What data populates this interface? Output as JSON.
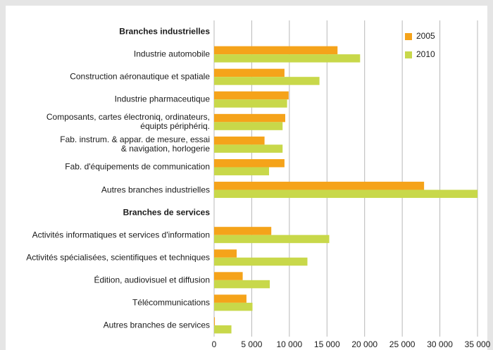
{
  "chart_data": {
    "type": "bar",
    "orientation": "horizontal",
    "categories": [
      "Branches industrielles",
      "Industrie automobile",
      "Construction aéronautique et spatiale",
      "Industrie pharmaceutique",
      "Composants, cartes électroniq, ordinateurs,\néquipts périphériq.",
      "Fab. instrum. & appar. de mesure, essai\n& navigation, horlogerie",
      "Fab. d'équipements de communication",
      "Autres branches industrielles",
      "Branches de services",
      "Activités informatiques et services d'information",
      "Activités spécialisées, scientifiques et techniques",
      "Édition, audiovisuel et diffusion",
      "Télécommunications",
      "Autres branches de services"
    ],
    "series": [
      {
        "name": "2005",
        "color": "#f5a31a",
        "values": [
          null,
          16400,
          9350,
          9900,
          9450,
          6700,
          9350,
          27900,
          null,
          7600,
          3000,
          3800,
          4300,
          100
        ]
      },
      {
        "name": "2010",
        "color": "#c8d84a",
        "values": [
          null,
          19400,
          14000,
          9700,
          9100,
          9100,
          7300,
          35000,
          null,
          15300,
          12400,
          7400,
          5100,
          2300
        ]
      }
    ],
    "xlim": [
      0,
      35000
    ],
    "xticks": [
      0,
      {
        "value": 5000,
        "label": "5 000"
      },
      {
        "value": 10000,
        "label": "10 000"
      },
      {
        "value": 15000,
        "label": "15 000"
      },
      {
        "value": 20000,
        "label": "20 000"
      },
      {
        "value": 25000,
        "label": "25 000"
      },
      {
        "value": 30000,
        "label": "30 000"
      },
      {
        "value": 35000,
        "label": "35 000"
      }
    ],
    "grid": true,
    "legend": "upper right"
  }
}
